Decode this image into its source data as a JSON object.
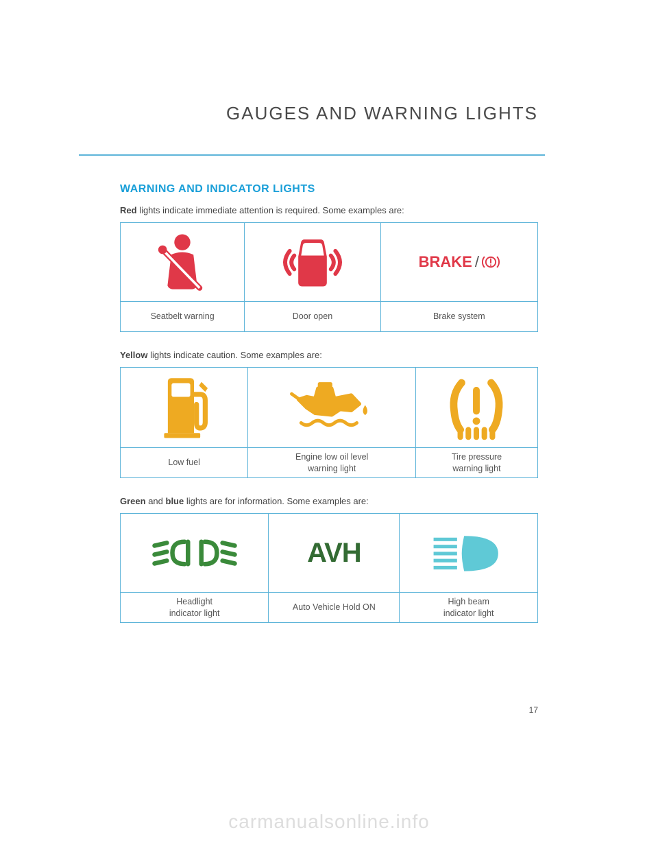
{
  "page_title": "GAUGES AND WARNING LIGHTS",
  "section_title": "WARNING AND INDICATOR LIGHTS",
  "page_number": "17",
  "watermark": "carmanualsonline.info",
  "colors": {
    "accent_blue": "#1a9fd8",
    "border_blue": "#5db4d9",
    "red": "#e03848",
    "yellow": "#eeaa22",
    "green_dark": "#336b33",
    "green_light": "#3a8a3a",
    "cyan": "#5fc9d6"
  },
  "red": {
    "intro_bold": "Red",
    "intro_rest": " lights indicate immediate attention is required. Some examples are:",
    "items": [
      {
        "label": "Seatbelt warning"
      },
      {
        "label": "Door open"
      },
      {
        "label": "Brake system",
        "brake_word": "BRAKE",
        "brake_sep": "/"
      }
    ]
  },
  "yellow": {
    "intro_bold": "Yellow",
    "intro_rest": " lights indicate caution. Some examples are:",
    "items": [
      {
        "label": "Low fuel"
      },
      {
        "label": "Engine low oil level\nwarning light"
      },
      {
        "label": "Tire pressure\nwarning light"
      }
    ]
  },
  "green": {
    "intro_bold1": "Green",
    "intro_mid": " and ",
    "intro_bold2": "blue",
    "intro_rest": " lights are for information. Some examples are:",
    "items": [
      {
        "label": "Headlight\nindicator light"
      },
      {
        "label": "Auto Vehicle Hold ON",
        "avh": "AVH"
      },
      {
        "label": "High beam\nindicator light"
      }
    ]
  }
}
